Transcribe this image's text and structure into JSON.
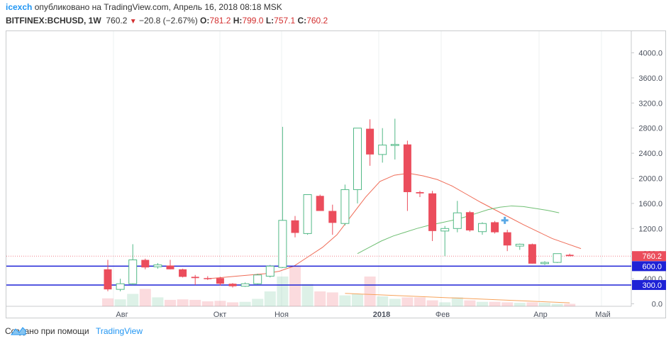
{
  "header": {
    "author": "icexch",
    "published": "опубликовано на TradingView.com, Апрель 16, 2018 08:18 MSK",
    "symbol": "BITFINEX:BCHUSD, 1W",
    "last": "760.2",
    "change_arrow": "▼",
    "change": "−20.8 (−2.67%)",
    "o_label": "O:",
    "o": "781.2",
    "h_label": "H:",
    "h": "799.0",
    "l_label": "L:",
    "l": "757.1",
    "c_label": "C:",
    "c": "760.2"
  },
  "footer": {
    "created_with": "Создано при помощи",
    "brand": "TradingView"
  },
  "colors": {
    "up": "#53b987",
    "down": "#eb4d5c",
    "ma_fast": "#ef6c57",
    "ma_slow": "#6fbf73",
    "hline": "#1e22d6",
    "axis_text": "#4c525e"
  },
  "chart_data": {
    "type": "candlestick",
    "y_axis_ticks": [
      "4000.0",
      "3600.0",
      "3200.0",
      "2800.0",
      "2400.0",
      "2000.0",
      "1600.0",
      "1200.0",
      "800.0",
      "400.0",
      "0.0"
    ],
    "ylim": [
      0,
      4200
    ],
    "x_axis_labels": [
      "Авг",
      "Окт",
      "Ноя",
      "2018",
      "Фев",
      "Апр",
      "Май"
    ],
    "price_labels": [
      {
        "text": "760.2",
        "value": 760.2,
        "color": "#eb4d5c"
      },
      {
        "text": "600.0",
        "value": 600,
        "color": "#1e22d6"
      },
      {
        "text": "300.0",
        "value": 300,
        "color": "#1e22d6"
      }
    ],
    "horizontal_lines": [
      600,
      300
    ],
    "candles": [
      {
        "o": 550,
        "h": 700,
        "l": 200,
        "c": 230
      },
      {
        "o": 230,
        "h": 400,
        "l": 200,
        "c": 320
      },
      {
        "o": 320,
        "h": 950,
        "l": 300,
        "c": 700
      },
      {
        "o": 700,
        "h": 720,
        "l": 550,
        "c": 580
      },
      {
        "o": 590,
        "h": 650,
        "l": 560,
        "c": 620
      },
      {
        "o": 610,
        "h": 700,
        "l": 550,
        "c": 550
      },
      {
        "o": 550,
        "h": 560,
        "l": 420,
        "c": 430
      },
      {
        "o": 430,
        "h": 460,
        "l": 300,
        "c": 410
      },
      {
        "o": 410,
        "h": 440,
        "l": 380,
        "c": 400
      },
      {
        "o": 410,
        "h": 430,
        "l": 290,
        "c": 320
      },
      {
        "o": 320,
        "h": 330,
        "l": 260,
        "c": 280
      },
      {
        "o": 280,
        "h": 340,
        "l": 270,
        "c": 320
      },
      {
        "o": 320,
        "h": 480,
        "l": 310,
        "c": 460
      },
      {
        "o": 440,
        "h": 620,
        "l": 420,
        "c": 600
      },
      {
        "o": 580,
        "h": 2820,
        "l": 570,
        "c": 1330
      },
      {
        "o": 1330,
        "h": 1400,
        "l": 1060,
        "c": 1130
      },
      {
        "o": 1120,
        "h": 1740,
        "l": 1100,
        "c": 1740
      },
      {
        "o": 1720,
        "h": 1740,
        "l": 1480,
        "c": 1480
      },
      {
        "o": 1480,
        "h": 1580,
        "l": 1100,
        "c": 1290
      },
      {
        "o": 1280,
        "h": 1900,
        "l": 1250,
        "c": 1820
      },
      {
        "o": 1820,
        "h": 2800,
        "l": 1600,
        "c": 2800
      },
      {
        "o": 2790,
        "h": 2940,
        "l": 2200,
        "c": 2380
      },
      {
        "o": 2380,
        "h": 2800,
        "l": 2250,
        "c": 2530
      },
      {
        "o": 2540,
        "h": 2950,
        "l": 2300,
        "c": 2540
      },
      {
        "o": 2540,
        "h": 2600,
        "l": 1480,
        "c": 1780
      },
      {
        "o": 1780,
        "h": 1800,
        "l": 1700,
        "c": 1760
      },
      {
        "o": 1760,
        "h": 1800,
        "l": 1000,
        "c": 1160
      },
      {
        "o": 1160,
        "h": 1240,
        "l": 760,
        "c": 1200
      },
      {
        "o": 1200,
        "h": 1640,
        "l": 1140,
        "c": 1450
      },
      {
        "o": 1460,
        "h": 1480,
        "l": 1150,
        "c": 1170
      },
      {
        "o": 1150,
        "h": 1300,
        "l": 1100,
        "c": 1280
      },
      {
        "o": 1300,
        "h": 1320,
        "l": 1120,
        "c": 1140
      },
      {
        "o": 1140,
        "h": 1180,
        "l": 840,
        "c": 930
      },
      {
        "o": 920,
        "h": 960,
        "l": 860,
        "c": 950
      },
      {
        "o": 950,
        "h": 960,
        "l": 640,
        "c": 640
      },
      {
        "o": 640,
        "h": 680,
        "l": 620,
        "c": 660
      },
      {
        "o": 660,
        "h": 800,
        "l": 650,
        "c": 800
      },
      {
        "o": 781.2,
        "h": 799,
        "l": 757.1,
        "c": 760.2
      }
    ],
    "ma_fast": [
      400,
      420,
      440,
      460,
      480,
      520,
      600,
      750,
      900,
      1100,
      1400,
      1700,
      1950,
      2050,
      2080,
      2040,
      1980,
      1880,
      1750,
      1620,
      1500,
      1380,
      1260,
      1150,
      1040,
      960,
      880
    ],
    "ma_slow": [
      800,
      900,
      1000,
      1080,
      1140,
      1200,
      1250,
      1290,
      1330,
      1380,
      1440,
      1500,
      1540,
      1560,
      1550,
      1520,
      1490,
      1450
    ],
    "volumes": [
      0.16,
      0.14,
      0.25,
      0.35,
      0.18,
      0.13,
      0.14,
      0.13,
      0.1,
      0.11,
      0.08,
      0.09,
      0.15,
      0.3,
      0.6,
      0.8,
      0.45,
      0.3,
      0.28,
      0.22,
      0.25,
      0.6,
      0.2,
      0.15,
      0.18,
      0.18,
      0.12,
      0.08,
      0.18,
      0.12,
      0.09,
      0.09,
      0.08,
      0.07,
      0.08,
      0.07,
      0.05,
      0.05
    ]
  }
}
